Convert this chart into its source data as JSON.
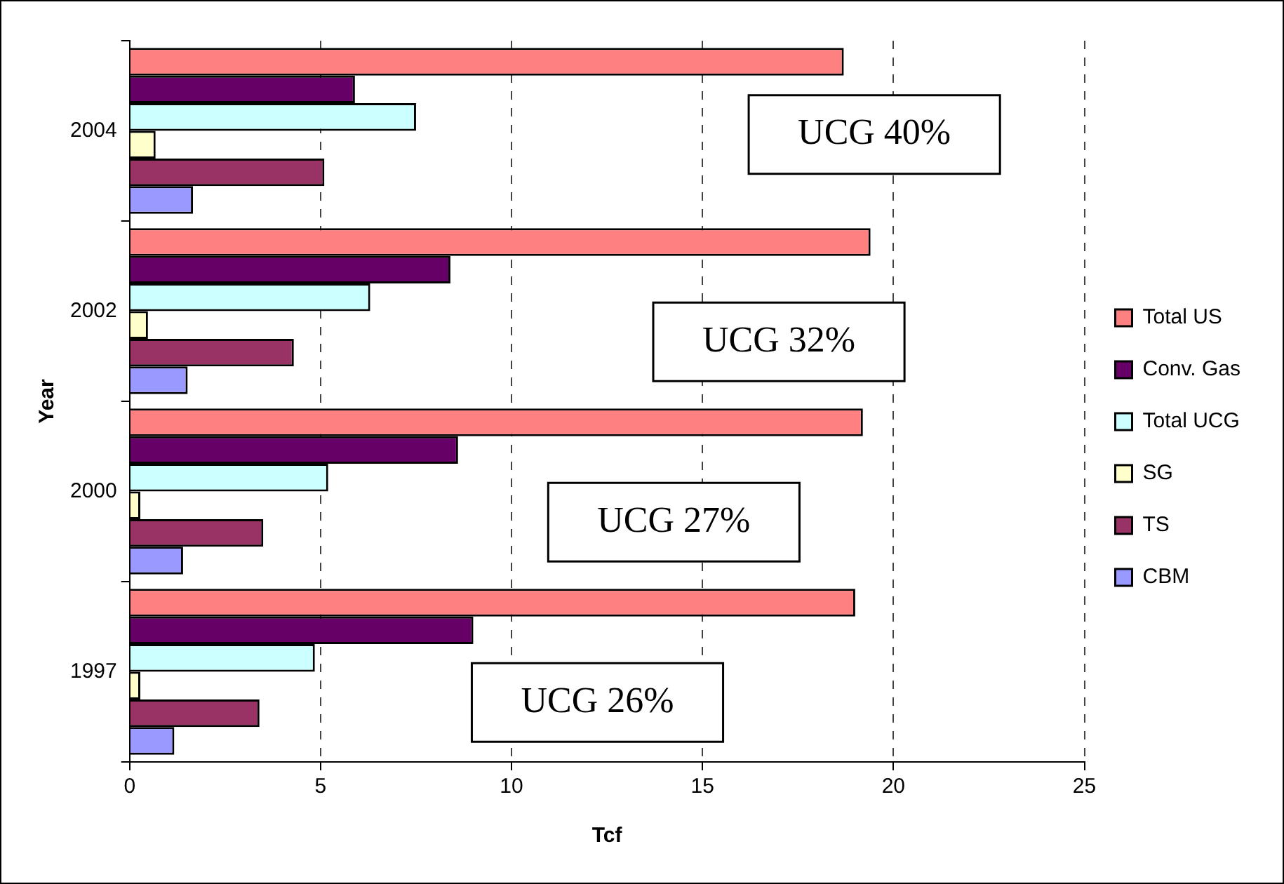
{
  "chart_data": {
    "type": "bar",
    "orientation": "horizontal",
    "xlabel": "Tcf",
    "ylabel": "Year",
    "categories": [
      "2004",
      "2002",
      "2000",
      "1997"
    ],
    "series": [
      {
        "name": "Total US",
        "color": "#ff8080",
        "values": [
          18.7,
          19.4,
          19.2,
          19.0
        ]
      },
      {
        "name": "Conv. Gas",
        "color": "#660066",
        "values": [
          5.9,
          8.4,
          8.6,
          9.0
        ]
      },
      {
        "name": "Total UCG",
        "color": "#ccffff",
        "values": [
          7.5,
          6.3,
          5.2,
          4.85
        ]
      },
      {
        "name": "SG",
        "color": "#ffffcc",
        "values": [
          0.68,
          0.48,
          0.28,
          0.28
        ]
      },
      {
        "name": "TS",
        "color": "#993366",
        "values": [
          5.1,
          4.3,
          3.5,
          3.4
        ]
      },
      {
        "name": "CBM",
        "color": "#9999ff",
        "values": [
          1.66,
          1.52,
          1.4,
          1.17
        ]
      }
    ],
    "xlim": [
      0,
      25
    ],
    "xticks": [
      0,
      5,
      10,
      15,
      20,
      25
    ],
    "grid": "x",
    "legend": "right",
    "annotations": [
      "UCG 40%",
      "UCG 32%",
      "UCG 27%",
      "UCG 26%"
    ]
  }
}
